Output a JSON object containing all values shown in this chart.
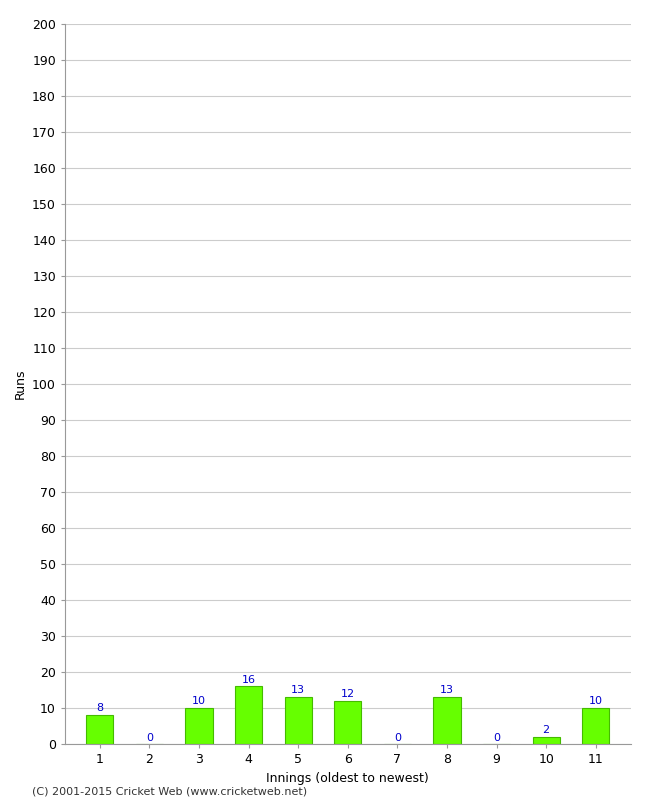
{
  "xlabel": "Innings (oldest to newest)",
  "ylabel": "Runs",
  "categories": [
    "1",
    "2",
    "3",
    "4",
    "5",
    "6",
    "7",
    "8",
    "9",
    "10",
    "11"
  ],
  "values": [
    8,
    0,
    10,
    16,
    13,
    12,
    0,
    13,
    0,
    2,
    10
  ],
  "bar_color": "#66ff00",
  "bar_edge_color": "#44bb00",
  "value_color": "#0000cc",
  "ylim": [
    0,
    200
  ],
  "yticks": [
    0,
    10,
    20,
    30,
    40,
    50,
    60,
    70,
    80,
    90,
    100,
    110,
    120,
    130,
    140,
    150,
    160,
    170,
    180,
    190,
    200
  ],
  "footer": "(C) 2001-2015 Cricket Web (www.cricketweb.net)",
  "background_color": "#ffffff",
  "grid_color": "#cccccc",
  "label_fontsize": 9,
  "tick_fontsize": 9,
  "value_fontsize": 8,
  "footer_fontsize": 8
}
